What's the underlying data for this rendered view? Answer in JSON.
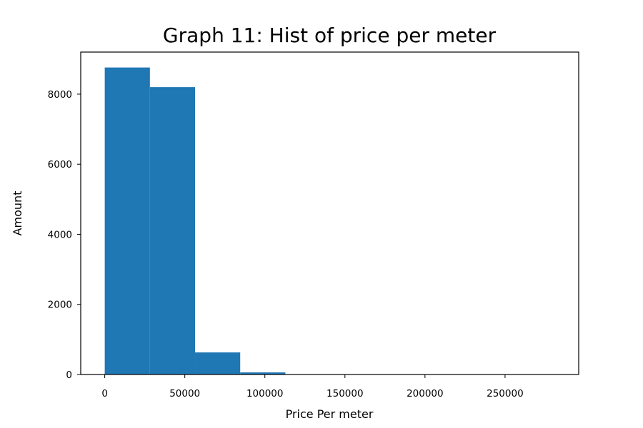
{
  "chart_data": {
    "type": "bar",
    "title": "Graph 11: Hist of price per meter",
    "xlabel": "Price Per meter",
    "ylabel": "Amount",
    "bin_edges": [
      0,
      28200,
      56400,
      84600,
      112800,
      141000,
      169200,
      197400,
      225600,
      253800,
      282000
    ],
    "values": [
      8760,
      8200,
      630,
      60,
      8,
      3,
      2,
      1,
      0,
      1
    ],
    "xlim": [
      -15000,
      296000
    ],
    "ylim": [
      0,
      9200
    ],
    "xticks": [
      0,
      50000,
      100000,
      150000,
      200000,
      250000
    ],
    "yticks": [
      0,
      2000,
      4000,
      6000,
      8000
    ],
    "bar_color": "#1f77b4",
    "grid": false,
    "legend": false
  }
}
